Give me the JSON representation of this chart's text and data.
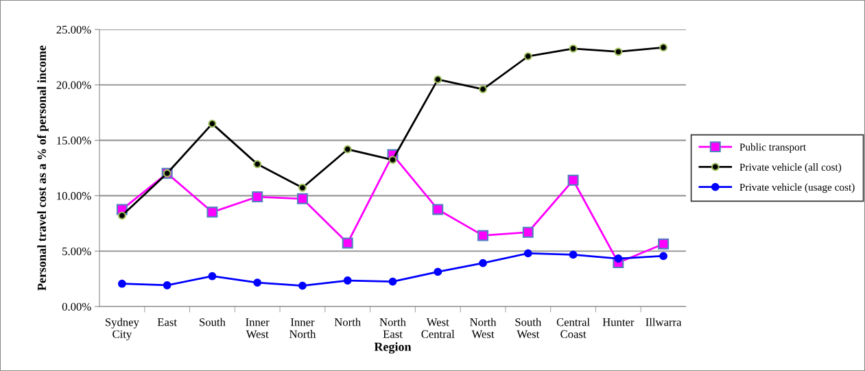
{
  "chart_data": {
    "type": "line",
    "xlabel": "Region",
    "ylabel": "Personal travel cost as a % of personal income",
    "categories": [
      "Sydney\nCity",
      "East",
      "South",
      "Inner\nWest",
      "Inner\nNorth",
      "North",
      "North\nEast",
      "West\nCentral",
      "North\nWest",
      "South\nWest",
      "Central\nCoast",
      "Hunter",
      "Illwarra"
    ],
    "series": [
      {
        "name": "Public transport",
        "color": "#ff00ff",
        "marker": "square",
        "values": [
          8.76,
          12.02,
          8.52,
          9.9,
          9.73,
          5.73,
          13.7,
          8.76,
          6.41,
          6.7,
          11.4,
          3.96,
          5.65
        ]
      },
      {
        "name": "Private vehicle (all cost)",
        "color": "#000000",
        "marker": "circle",
        "values": [
          8.21,
          12.02,
          16.5,
          12.85,
          10.72,
          14.19,
          13.24,
          20.49,
          19.61,
          22.58,
          23.28,
          22.99,
          23.38
        ]
      },
      {
        "name": "Private vehicle (usage cost)",
        "color": "#0000ff",
        "marker": "circle",
        "values": [
          2.06,
          1.92,
          2.74,
          2.16,
          1.88,
          2.35,
          2.25,
          3.13,
          3.92,
          4.8,
          4.68,
          4.33,
          4.56
        ]
      }
    ],
    "ylim": [
      0,
      25
    ],
    "yticks": [
      {
        "value": 0,
        "label": "0.00%"
      },
      {
        "value": 5,
        "label": "5.00%"
      },
      {
        "value": 10,
        "label": "10.00%"
      },
      {
        "value": 15,
        "label": "15.00%"
      },
      {
        "value": 20,
        "label": "20.00%"
      },
      {
        "value": 25,
        "label": "25.00%"
      }
    ],
    "grid": "y",
    "legend": "right",
    "line_style": "solid"
  }
}
